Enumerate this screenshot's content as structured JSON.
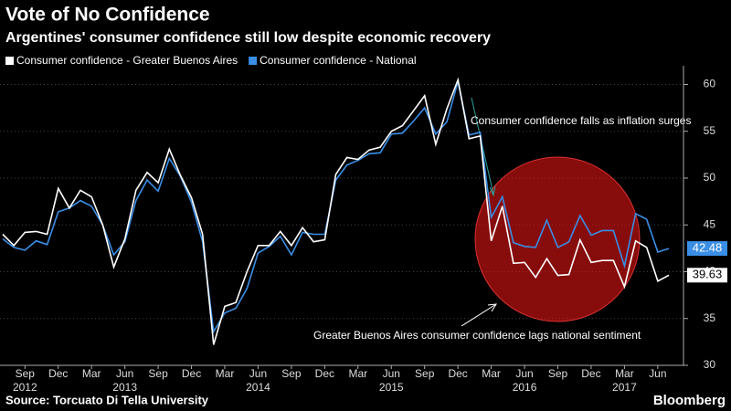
{
  "chart_data": {
    "type": "line",
    "title": "Vote of No Confidence",
    "subtitle": "Argentines' consumer confidence still low despite economic recovery",
    "source": "Source: Torcuato Di Tella University",
    "brand": "Bloomberg",
    "x": [
      "2012-07",
      "2012-08",
      "2012-09",
      "2012-10",
      "2012-11",
      "2012-12",
      "2013-01",
      "2013-02",
      "2013-03",
      "2013-04",
      "2013-05",
      "2013-06",
      "2013-07",
      "2013-08",
      "2013-09",
      "2013-10",
      "2013-11",
      "2013-12",
      "2014-01",
      "2014-02",
      "2014-03",
      "2014-04",
      "2014-05",
      "2014-06",
      "2014-07",
      "2014-08",
      "2014-09",
      "2014-10",
      "2014-11",
      "2014-12",
      "2015-01",
      "2015-02",
      "2015-03",
      "2015-04",
      "2015-05",
      "2015-06",
      "2015-07",
      "2015-08",
      "2015-09",
      "2015-10",
      "2015-11",
      "2015-12",
      "2016-01",
      "2016-02",
      "2016-03",
      "2016-04",
      "2016-05",
      "2016-06",
      "2016-07",
      "2016-08",
      "2016-09",
      "2016-10",
      "2016-11",
      "2016-12",
      "2017-01",
      "2017-02",
      "2017-03",
      "2017-04",
      "2017-05",
      "2017-06",
      "2017-07"
    ],
    "series": [
      {
        "name": "Consumer confidence - Greater Buenos Aires",
        "color": "#ffffff",
        "values": [
          44.0,
          42.8,
          44.2,
          44.3,
          44.0,
          48.9,
          46.8,
          48.7,
          48.0,
          45.0,
          40.5,
          43.5,
          48.7,
          50.6,
          49.5,
          53.1,
          50.3,
          47.9,
          44.0,
          32.2,
          36.3,
          36.7,
          40.0,
          42.8,
          42.8,
          44.3,
          42.8,
          44.7,
          43.2,
          43.4,
          50.4,
          52.2,
          52.0,
          53.0,
          53.3,
          55.0,
          55.6,
          57.2,
          58.8,
          53.6,
          57.4,
          60.5,
          54.2,
          54.5,
          43.3,
          47.0,
          40.9,
          41.0,
          39.4,
          41.4,
          39.6,
          39.7,
          43.4,
          41.0,
          41.2,
          41.2,
          38.4,
          43.3,
          42.6,
          39.0,
          39.63
        ]
      },
      {
        "name": "Consumer confidence - National",
        "color": "#3a8ee6",
        "values": [
          43.5,
          42.6,
          42.3,
          43.3,
          42.9,
          46.4,
          46.8,
          47.6,
          47.0,
          45.0,
          41.8,
          43.2,
          47.6,
          49.8,
          48.6,
          52.1,
          50.2,
          47.4,
          43.2,
          33.6,
          35.6,
          36.1,
          38.2,
          42.0,
          42.7,
          43.8,
          41.8,
          44.2,
          44.0,
          44.0,
          49.8,
          51.4,
          51.9,
          52.6,
          52.7,
          54.7,
          54.8,
          56.1,
          57.5,
          54.7,
          56.0,
          60.3,
          54.6,
          54.9,
          45.8,
          48.0,
          43.1,
          42.7,
          42.6,
          45.5,
          42.6,
          43.2,
          46.0,
          43.9,
          44.4,
          44.4,
          40.6,
          46.2,
          45.6,
          42.1,
          42.48
        ]
      }
    ],
    "xticks": [
      {
        "value": "2012-09",
        "label": "Sep"
      },
      {
        "value": "2012-12",
        "label": "Dec"
      },
      {
        "value": "2013-03",
        "label": "Mar"
      },
      {
        "value": "2013-06",
        "label": "Jun"
      },
      {
        "value": "2013-09",
        "label": "Sep"
      },
      {
        "value": "2013-12",
        "label": "Dec"
      },
      {
        "value": "2014-03",
        "label": "Mar"
      },
      {
        "value": "2014-06",
        "label": "Jun"
      },
      {
        "value": "2014-09",
        "label": "Sep"
      },
      {
        "value": "2014-12",
        "label": "Dec"
      },
      {
        "value": "2015-03",
        "label": "Mar"
      },
      {
        "value": "2015-06",
        "label": "Jun"
      },
      {
        "value": "2015-09",
        "label": "Sep"
      },
      {
        "value": "2015-12",
        "label": "Dec"
      },
      {
        "value": "2016-03",
        "label": "Mar"
      },
      {
        "value": "2016-06",
        "label": "Jun"
      },
      {
        "value": "2016-09",
        "label": "Sep"
      },
      {
        "value": "2016-12",
        "label": "Dec"
      },
      {
        "value": "2017-03",
        "label": "Mar"
      },
      {
        "value": "2017-06",
        "label": "Jun"
      }
    ],
    "year_labels": [
      {
        "value": "2012-09",
        "label": "2012"
      },
      {
        "value": "2013-06",
        "label": "2013"
      },
      {
        "value": "2014-06",
        "label": "2014"
      },
      {
        "value": "2015-06",
        "label": "2015"
      },
      {
        "value": "2016-06",
        "label": "2016"
      },
      {
        "value": "2017-03",
        "label": "2017"
      }
    ],
    "ylim": [
      30,
      62
    ],
    "yticks": [
      30,
      35,
      40,
      45,
      50,
      55,
      60
    ],
    "grid": true,
    "annotations": [
      "Consumer confidence falls as inflation surges",
      "Greater Buenos Aires consumer confidence lags national sentiment"
    ]
  }
}
